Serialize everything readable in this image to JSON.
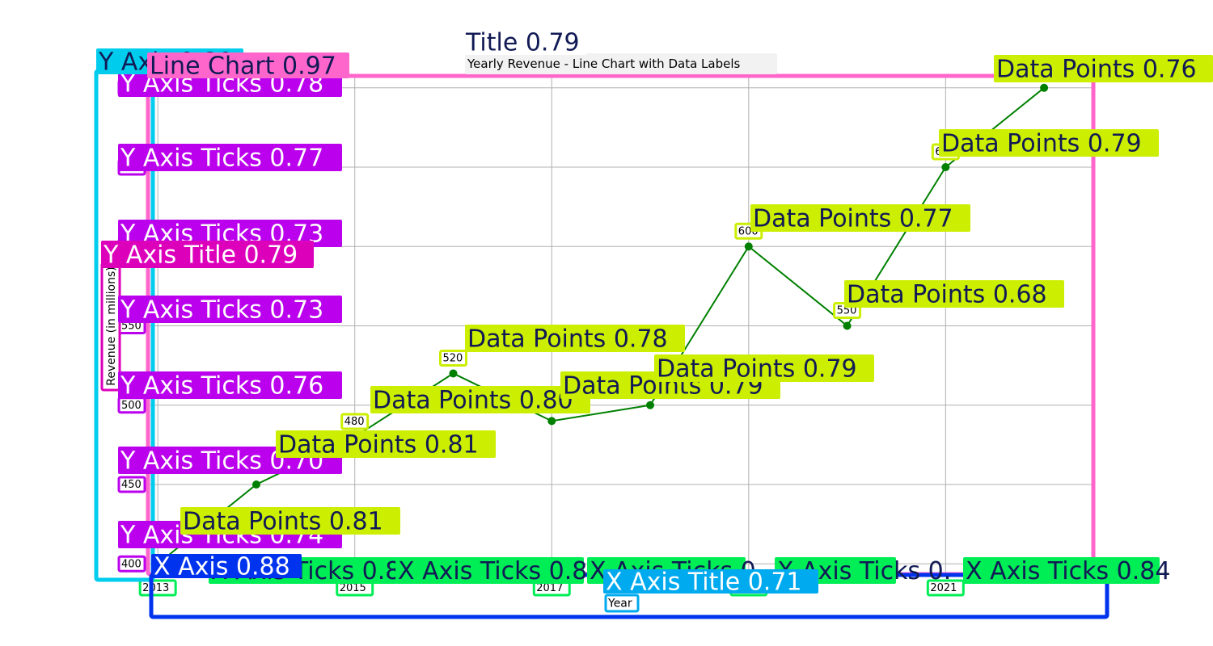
{
  "chart_data": {
    "type": "line",
    "title": "Yearly Revenue - Line Chart with Data Labels",
    "xlabel": "Year",
    "ylabel": "Revenue (in millions)",
    "x": [
      2013,
      2014,
      2015,
      2016,
      2017,
      2018,
      2019,
      2020,
      2021,
      2022
    ],
    "x_ticks": [
      "2013",
      "2015",
      "2017",
      "2019",
      "2021"
    ],
    "y_ticks": [
      400,
      450,
      500,
      550,
      600,
      650,
      700
    ],
    "series": [
      {
        "values": [
          400,
          450,
          480,
          520,
          490,
          500,
          600,
          550,
          650,
          700
        ]
      }
    ],
    "data_labels": [
      "",
      "",
      "480",
      "520",
      "",
      "",
      "600",
      "550",
      "650",
      "700"
    ],
    "xlim": [
      2012.9,
      2022.5
    ],
    "ylim": [
      393,
      707
    ],
    "grid": true,
    "line_color": "#008000"
  },
  "detections": {
    "title": "Title 0.79",
    "line_chart": "Line Chart 0.97",
    "y_axis": "Y Axis 0.80",
    "x_axis": "X Axis 0.88",
    "y_axis_title": "Y Axis Title 0.79",
    "x_axis_title": "X Axis Title 0.71",
    "y_ticks": [
      "Y Axis Ticks 0.74",
      "Y Axis Ticks 0.70",
      "Y Axis Ticks 0.76",
      "Y Axis Ticks 0.73",
      "Y Axis Ticks 0.73",
      "Y Axis Ticks 0.77",
      "Y Axis Ticks 0.78"
    ],
    "x_ticks": [
      "X Axis Ticks 0.83",
      "X Axis Ticks 0.83",
      "X Axis Ticks 0.",
      "X Axis Ticks 0.",
      "X Axis Ticks 0.84"
    ],
    "data_points": [
      "Data Points 0.81",
      "Data Points 0.81",
      "Data Points 0.80",
      "Data Points 0.78",
      "Data Points 0.79",
      "Data Points 0.79",
      "Data Points 0.77",
      "Data Points 0.68",
      "Data Points 0.79",
      "Data Points 0.76"
    ]
  },
  "colors": {
    "title_det": "#f2f2f2",
    "line_chart_det": "#ff66cc",
    "y_axis_det": "#00ccee",
    "x_axis_det": "#0033ee",
    "y_ticks_det": "#bb00ee",
    "x_ticks_det": "#00ee55",
    "data_points_det": "#ccee00",
    "y_title_det": "#dd00bb",
    "x_title_det": "#00aaee",
    "dark_text": "#111a55"
  }
}
